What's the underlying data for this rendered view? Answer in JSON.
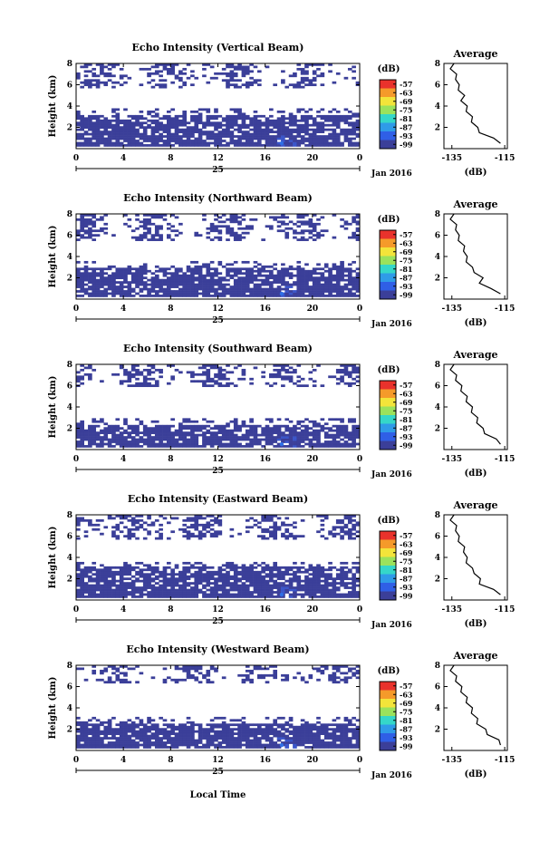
{
  "figure": {
    "xlabel": "Local Time",
    "date_label": "Jan 2016",
    "x_ticks": [
      "0",
      "4",
      "8",
      "12",
      "16",
      "20",
      "0"
    ],
    "day_label": "25",
    "ylabel": "Height (km)",
    "y_ticks": [
      "2",
      "4",
      "6",
      "8"
    ],
    "avg_title": "Average",
    "avg_xlabel": "(dB)",
    "avg_x_ticks": [
      "-135",
      "-115"
    ],
    "colorbar_unit": "(dB)",
    "colorbar_ticks": [
      "-57",
      "-63",
      "-69",
      "-75",
      "-81",
      "-87",
      "-93",
      "-99"
    ],
    "colorbar_colors": [
      "#e9322c",
      "#f59a2a",
      "#f3e43a",
      "#9be25c",
      "#35d7c9",
      "#2f9be8",
      "#2f5fe6",
      "#3b3f99"
    ]
  },
  "chart_data": [
    {
      "type": "heatmap",
      "title": "Echo Intensity (Vertical Beam)",
      "x_range_hours": [
        0,
        24
      ],
      "ylim_km": [
        0,
        8
      ],
      "color_range_db": [
        -99,
        -57
      ],
      "echo_bands_km": [
        [
          0.3,
          3.2
        ],
        [
          5.7,
          7.9
        ]
      ],
      "avg_profile": {
        "height_km": [
          0.5,
          1,
          1.5,
          2,
          2.5,
          3,
          3.5,
          4,
          4.5,
          5,
          5.5,
          6,
          6.5,
          7,
          7.5,
          8
        ],
        "db": [
          -116,
          -120,
          -124,
          -126,
          -127,
          -128,
          -129,
          -130,
          -131,
          -131,
          -132,
          -133,
          -133,
          -134,
          -135,
          -135
        ]
      }
    },
    {
      "type": "heatmap",
      "title": "Echo Intensity (Northward Beam)",
      "x_range_hours": [
        0,
        24
      ],
      "ylim_km": [
        0,
        8
      ],
      "color_range_db": [
        -99,
        -57
      ],
      "echo_bands_km": [
        [
          0.3,
          3.0
        ],
        [
          5.5,
          7.9
        ]
      ],
      "avg_profile": {
        "height_km": [
          0.5,
          1,
          1.5,
          2,
          2.5,
          3,
          3.5,
          4,
          4.5,
          5,
          5.5,
          6,
          6.5,
          7,
          7.5,
          8
        ],
        "db": [
          -116,
          -121,
          -124,
          -124,
          -126,
          -128,
          -129,
          -130,
          -130,
          -131,
          -132,
          -133,
          -133,
          -134,
          -135,
          -135
        ]
      }
    },
    {
      "type": "heatmap",
      "title": "Echo Intensity (Southward Beam)",
      "x_range_hours": [
        0,
        24
      ],
      "ylim_km": [
        0,
        8
      ],
      "color_range_db": [
        -99,
        -57
      ],
      "echo_bands_km": [
        [
          0.3,
          2.4
        ],
        [
          6.0,
          7.9
        ]
      ],
      "avg_profile": {
        "height_km": [
          0.5,
          1,
          1.5,
          2,
          2.5,
          3,
          3.5,
          4,
          4.5,
          5,
          5.5,
          6,
          6.5,
          7,
          7.5,
          8
        ],
        "db": [
          -116,
          -119,
          -122,
          -124,
          -125,
          -126,
          -127,
          -128,
          -129,
          -130,
          -131,
          -132,
          -133,
          -134,
          -135,
          -135
        ]
      }
    },
    {
      "type": "heatmap",
      "title": "Echo Intensity (Eastward Beam)",
      "x_range_hours": [
        0,
        24
      ],
      "ylim_km": [
        0,
        8
      ],
      "color_range_db": [
        -99,
        -57
      ],
      "echo_bands_km": [
        [
          0.3,
          3.1
        ],
        [
          5.6,
          7.9
        ]
      ],
      "avg_profile": {
        "height_km": [
          0.5,
          1,
          1.5,
          2,
          2.5,
          3,
          3.5,
          4,
          4.5,
          5,
          5.5,
          6,
          6.5,
          7,
          7.5,
          8
        ],
        "db": [
          -116,
          -120,
          -124,
          -125,
          -126,
          -128,
          -129,
          -130,
          -130,
          -131,
          -132,
          -133,
          -133,
          -134,
          -135,
          -135
        ]
      }
    },
    {
      "type": "heatmap",
      "title": "Echo Intensity (Westward Beam)",
      "x_range_hours": [
        0,
        24
      ],
      "ylim_km": [
        0,
        8
      ],
      "color_range_db": [
        -99,
        -57
      ],
      "echo_bands_km": [
        [
          0.3,
          2.6
        ],
        [
          6.3,
          7.9
        ]
      ],
      "avg_profile": {
        "height_km": [
          0.5,
          1,
          1.5,
          2,
          2.5,
          3,
          3.5,
          4,
          4.5,
          5,
          5.5,
          6,
          6.5,
          7,
          7.5,
          8
        ],
        "db": [
          -116,
          -118,
          -121,
          -123,
          -125,
          -126,
          -127,
          -128,
          -129,
          -130,
          -131,
          -132,
          -133,
          -134,
          -135,
          -135
        ]
      }
    }
  ]
}
